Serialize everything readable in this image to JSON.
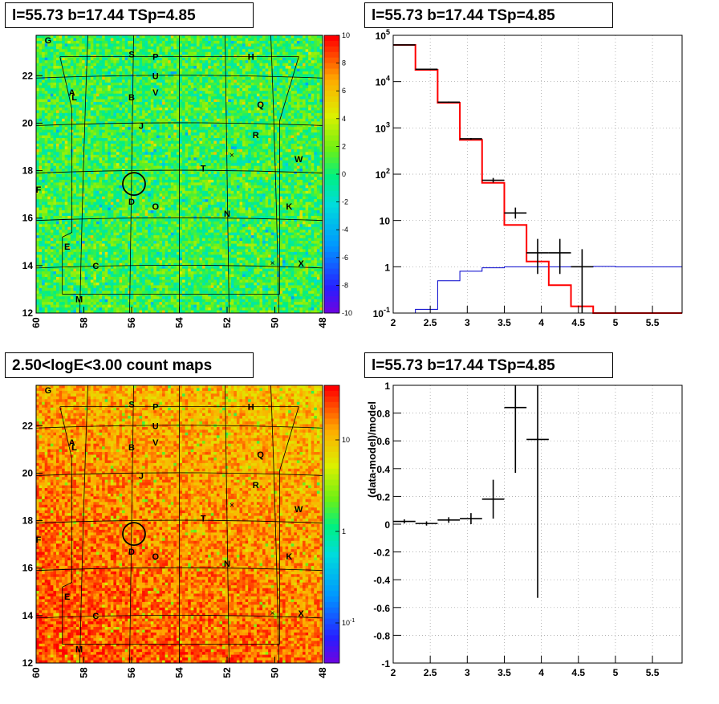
{
  "panels": {
    "tl": {
      "title": "l=55.73 b=17.44 TSp=4.85"
    },
    "tr": {
      "title": "l=55.73 b=17.44 TSp=4.85"
    },
    "bl": {
      "title": "2.50<logE<3.00 count maps"
    },
    "br": {
      "title": "l=55.73 b=17.44 TSp=4.85"
    }
  },
  "colors": {
    "model_line": "#ff0000",
    "source_line": "#0000cc",
    "data_marker": "#000000"
  },
  "chart_data": [
    {
      "type": "heatmap",
      "name": "residual-map",
      "xlim": [
        60,
        48
      ],
      "ylim": [
        12,
        23.7
      ],
      "x_ticks": [
        "60",
        "58",
        "56",
        "54",
        "52",
        "50",
        "48"
      ],
      "y_ticks": [
        "12",
        "14",
        "16",
        "18",
        "20",
        "22"
      ],
      "colorbar_ticks": [
        "10",
        "8",
        "6",
        "4",
        "2",
        "0",
        "-2",
        "-4",
        "-6",
        "-8",
        "-10"
      ],
      "colorbar_range": [
        -10,
        10
      ],
      "source_labels": [
        "G",
        "S",
        "P",
        "H",
        "U",
        "A",
        "L",
        "B",
        "V",
        "Q",
        "J",
        "R",
        "W",
        "T",
        "F",
        "D",
        "O",
        "N",
        "K",
        "E",
        "C",
        "X",
        "M"
      ]
    },
    {
      "type": "line",
      "name": "spectrum",
      "y_scale": "log",
      "xlim": [
        2,
        5.9
      ],
      "ylim": [
        0.1,
        100000
      ],
      "x_ticks": [
        "2",
        "2.5",
        "3",
        "3.5",
        "4",
        "4.5",
        "5",
        "5.5"
      ],
      "y_ticks": [
        "10^-1",
        "1",
        "10",
        "10^2",
        "10^3",
        "10^4",
        "10^5"
      ],
      "model_edges": [
        2.0,
        2.3,
        2.6,
        2.9,
        3.2,
        3.5,
        3.8,
        4.1,
        4.4,
        4.7,
        5.0,
        5.3,
        5.6,
        5.9
      ],
      "model_values": [
        62000,
        18000,
        3500,
        550,
        65,
        8,
        1.3,
        0.4,
        0.14,
        0.1,
        0.1,
        0.1,
        0.1
      ],
      "source_values": [
        0.1,
        0.12,
        0.5,
        0.8,
        0.95,
        1.0,
        1.0,
        1.0,
        1.0,
        1.02,
        1.0,
        1.0,
        1.0
      ],
      "data_points": [
        {
          "x": 2.15,
          "y": 62000,
          "ylo": 61500,
          "yhi": 62500
        },
        {
          "x": 2.45,
          "y": 18500,
          "ylo": 18200,
          "yhi": 18800
        },
        {
          "x": 2.75,
          "y": 3600,
          "ylo": 3480,
          "yhi": 3720
        },
        {
          "x": 3.05,
          "y": 580,
          "ylo": 555,
          "yhi": 605
        },
        {
          "x": 3.35,
          "y": 74,
          "ylo": 66,
          "yhi": 83
        },
        {
          "x": 3.65,
          "y": 14.5,
          "ylo": 11,
          "yhi": 19
        },
        {
          "x": 3.95,
          "y": 2,
          "ylo": 0.7,
          "yhi": 4
        },
        {
          "x": 4.25,
          "y": 2,
          "ylo": 0.7,
          "yhi": 4
        },
        {
          "x": 4.55,
          "y": 1,
          "ylo": 0.1,
          "yhi": 2.4
        }
      ]
    },
    {
      "type": "heatmap",
      "name": "count-map",
      "xlim": [
        60,
        48
      ],
      "ylim": [
        12,
        23.7
      ],
      "x_ticks": [
        "60",
        "58",
        "56",
        "54",
        "52",
        "50",
        "48"
      ],
      "y_ticks": [
        "12",
        "14",
        "16",
        "18",
        "20",
        "22"
      ],
      "colorbar_ticks": [
        "10",
        "1",
        "10^-1"
      ],
      "colorbar_scale": "log",
      "source_labels": [
        "G",
        "S",
        "P",
        "H",
        "U",
        "A",
        "L",
        "B",
        "V",
        "Q",
        "J",
        "R",
        "W",
        "T",
        "F",
        "D",
        "O",
        "N",
        "K",
        "E",
        "C",
        "X",
        "M"
      ]
    },
    {
      "type": "scatter",
      "name": "residual-ratio",
      "xlim": [
        2,
        5.9
      ],
      "ylim": [
        -1,
        1
      ],
      "x_ticks": [
        "2",
        "2.5",
        "3",
        "3.5",
        "4",
        "4.5",
        "5",
        "5.5"
      ],
      "y_ticks": [
        "-1",
        "-0.8",
        "-0.6",
        "-0.4",
        "-0.2",
        "0",
        "0.2",
        "0.4",
        "0.6",
        "0.8",
        "1"
      ],
      "ylabel": "(data-model)/model",
      "points": [
        {
          "x": 2.15,
          "y": 0.02,
          "ylo": 0.005,
          "yhi": 0.035
        },
        {
          "x": 2.45,
          "y": 0.005,
          "ylo": -0.01,
          "yhi": 0.02
        },
        {
          "x": 2.75,
          "y": 0.03,
          "ylo": 0.01,
          "yhi": 0.05
        },
        {
          "x": 3.05,
          "y": 0.04,
          "ylo": 0.0,
          "yhi": 0.08
        },
        {
          "x": 3.35,
          "y": 0.18,
          "ylo": 0.04,
          "yhi": 0.32
        },
        {
          "x": 3.65,
          "y": 0.84,
          "ylo": 0.37,
          "yhi": 1.0
        },
        {
          "x": 3.95,
          "y": 0.61,
          "ylo": -0.53,
          "yhi": 1.0
        }
      ]
    }
  ]
}
